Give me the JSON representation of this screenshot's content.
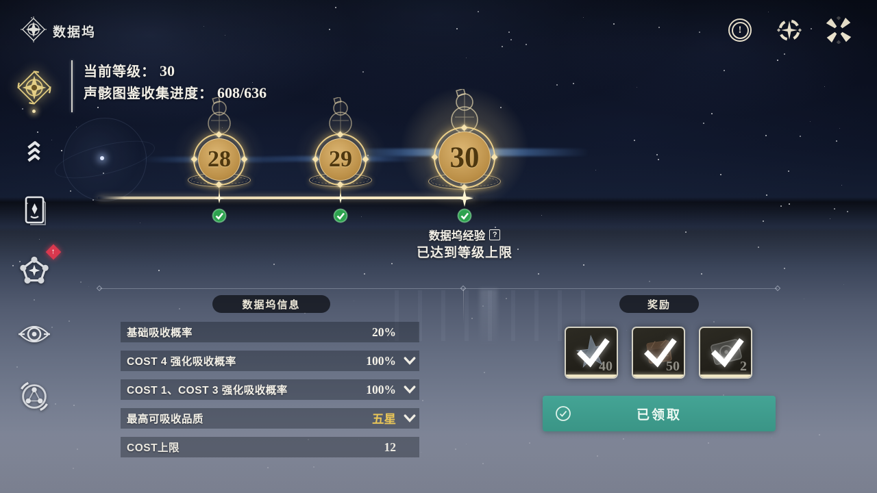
{
  "app": {
    "title": "数据坞"
  },
  "topbar": {
    "icons": [
      {
        "name": "notice-icon",
        "glyph": "!"
      },
      {
        "name": "absorb-reticle-icon",
        "glyph": "target-star"
      },
      {
        "name": "burst-close-icon",
        "glyph": "x-star"
      }
    ]
  },
  "sidebar": {
    "items": [
      {
        "name": "data-dock",
        "active": true
      },
      {
        "name": "tier-levels"
      },
      {
        "name": "echo-cards"
      },
      {
        "name": "formation-pentagon",
        "badge_glyph": "↑"
      },
      {
        "name": "emblem"
      },
      {
        "name": "network"
      }
    ]
  },
  "header": {
    "level_label": "当前等级：",
    "level_value": "30",
    "collection_label": "声骸图鉴收集进度：",
    "collection_value": "608/636"
  },
  "levels": {
    "nodes": [
      {
        "value": "28"
      },
      {
        "value": "29"
      },
      {
        "value": "30"
      }
    ],
    "exp_label": "数据坞经验",
    "help_glyph": "?",
    "cap_note": "已达到等级上限"
  },
  "info_panel": {
    "title": "数据坞信息",
    "rows": [
      {
        "label": "基础吸收概率",
        "value": "20%",
        "dropdown": false
      },
      {
        "label": "COST 4 强化吸收概率",
        "value": "100%",
        "dropdown": true
      },
      {
        "label": "COST 1、COST 3 强化吸收概率",
        "value": "100%",
        "dropdown": true
      },
      {
        "label": "最高可吸收品质",
        "value": "五星",
        "dropdown": true,
        "highlight": true
      },
      {
        "label": "COST上限",
        "value": "12",
        "dropdown": false
      }
    ]
  },
  "rewards": {
    "title": "奖励",
    "items": [
      {
        "item": "echo-shard-star",
        "count": "40",
        "claimed": true
      },
      {
        "item": "sealed-crate",
        "count": "50",
        "claimed": true
      },
      {
        "item": "data-disc",
        "count": "2",
        "claimed": true
      }
    ],
    "claim_button": {
      "label": "已领取",
      "state": "claimed"
    }
  },
  "colors": {
    "gold": "#e9c878",
    "star_gold": "#e8c558",
    "teal_button": "#3fa092",
    "check_green": "#2fa24b",
    "badge_red": "#d9384e",
    "cream_icon": "#f2ead4"
  }
}
